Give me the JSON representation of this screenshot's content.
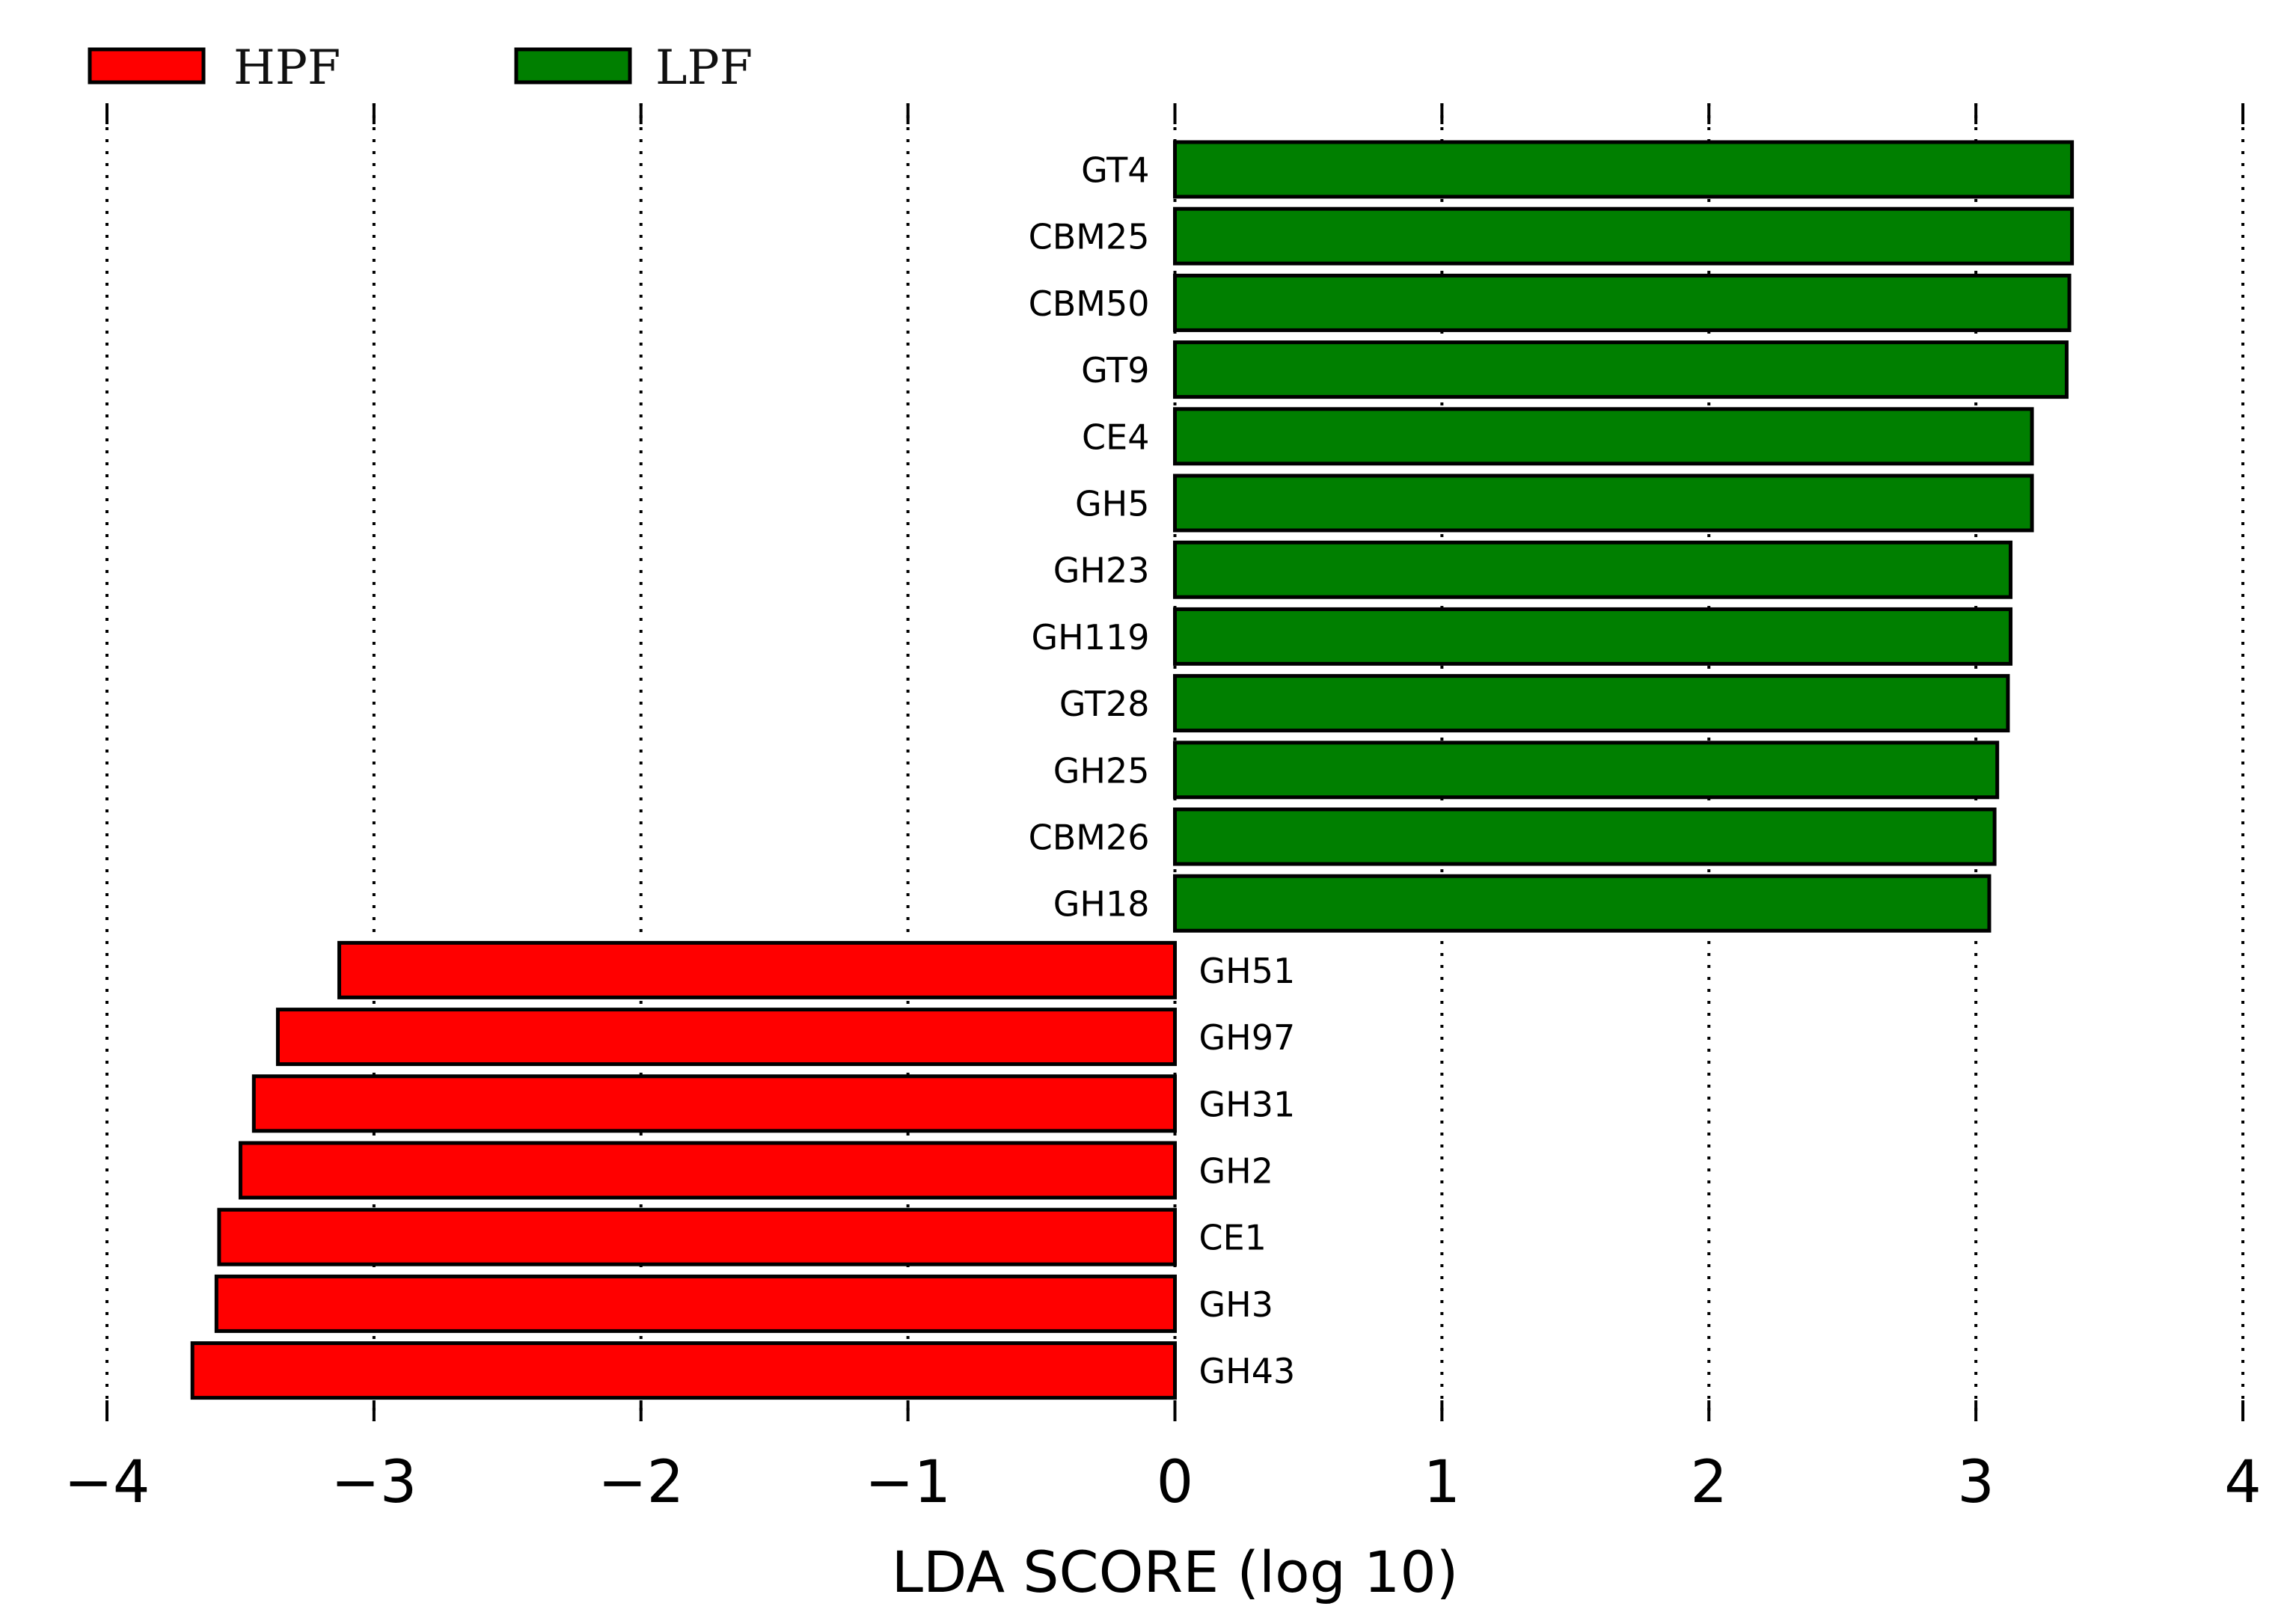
{
  "chart_data": {
    "type": "bar",
    "orientation": "horizontal",
    "title": "",
    "xlabel": "LDA SCORE (log 10)",
    "ylabel": "",
    "xlim": [
      -4,
      4
    ],
    "xticks": [
      -4,
      -3,
      -2,
      -1,
      0,
      1,
      2,
      3,
      4
    ],
    "xtick_labels": [
      "−4",
      "−3",
      "−2",
      "−1",
      "0",
      "1",
      "2",
      "3",
      "4"
    ],
    "grid": "vertical dotted",
    "legend_position": "top-left",
    "legend": [
      {
        "name": "HPF",
        "color": "#ff0000"
      },
      {
        "name": "LPF",
        "color": "#007f00"
      }
    ],
    "series": [
      {
        "name": "LPF",
        "color": "#007f00",
        "categories": [
          "GT4",
          "CBM25",
          "CBM50",
          "GT9",
          "CE4",
          "GH5",
          "GH23",
          "GH119",
          "GT28",
          "GH25",
          "CBM26",
          "GH18"
        ],
        "values": [
          3.36,
          3.36,
          3.35,
          3.34,
          3.21,
          3.21,
          3.13,
          3.13,
          3.12,
          3.08,
          3.07,
          3.05
        ]
      },
      {
        "name": "HPF",
        "color": "#ff0000",
        "categories": [
          "GH51",
          "GH97",
          "GH31",
          "GH2",
          "CE1",
          "GH3",
          "GH43"
        ],
        "values": [
          -3.13,
          -3.36,
          -3.45,
          -3.5,
          -3.58,
          -3.59,
          -3.68
        ]
      }
    ]
  }
}
